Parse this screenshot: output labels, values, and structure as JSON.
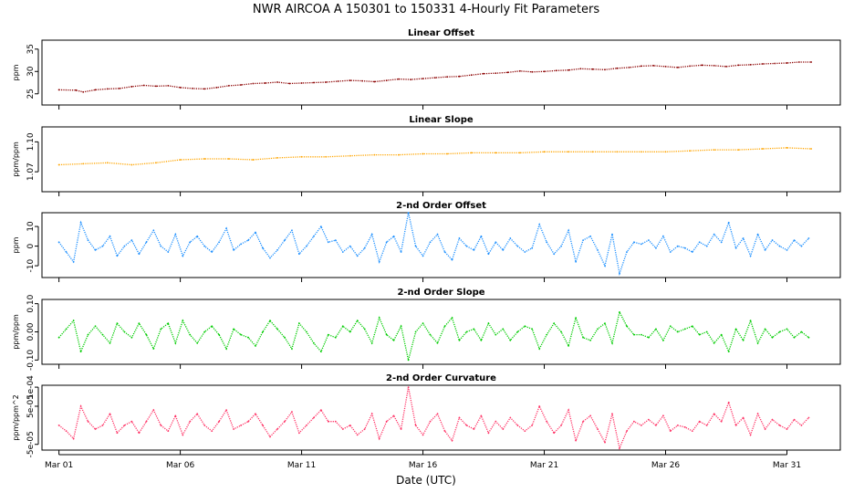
{
  "title": "NWR   AIRCOA A   150301 to 150331   4-Hourly Fit Parameters",
  "xlabel": "Date (UTC)",
  "x_ticks": [
    {
      "day": 1,
      "label": "Mar 01"
    },
    {
      "day": 6,
      "label": "Mar 06"
    },
    {
      "day": 11,
      "label": "Mar 11"
    },
    {
      "day": 16,
      "label": "Mar 16"
    },
    {
      "day": 21,
      "label": "Mar 21"
    },
    {
      "day": 26,
      "label": "Mar 26"
    },
    {
      "day": 31,
      "label": "Mar 31"
    }
  ],
  "chart_data": [
    {
      "type": "line",
      "title": "Linear Offset",
      "ylabel": "ppm",
      "color": "#8b0000",
      "xlim": [
        0.3,
        33.2
      ],
      "ylim": [
        22.5,
        37
      ],
      "yticks": [
        {
          "v": 25,
          "label": "25"
        },
        {
          "v": 30,
          "label": "30"
        },
        {
          "v": 35,
          "label": "35"
        }
      ],
      "x": [
        1.0,
        1.7,
        2.0,
        2.5,
        3.0,
        3.5,
        4.0,
        4.5,
        5.0,
        5.5,
        6.0,
        6.5,
        7.0,
        7.5,
        8.0,
        8.5,
        9.0,
        9.5,
        10.0,
        10.5,
        11.0,
        11.5,
        12.0,
        12.5,
        13.0,
        13.5,
        14.0,
        14.5,
        15.0,
        15.5,
        16.0,
        16.5,
        17.0,
        17.5,
        18.0,
        18.5,
        19.0,
        19.5,
        20.0,
        20.5,
        21.0,
        21.5,
        22.0,
        22.5,
        23.0,
        23.5,
        24.0,
        24.5,
        25.0,
        25.5,
        26.0,
        26.5,
        27.0,
        27.5,
        28.0,
        28.5,
        29.0,
        29.5,
        30.0,
        30.5,
        31.0,
        31.5,
        32.0
      ],
      "values": [
        25.9,
        25.8,
        25.4,
        25.9,
        26.1,
        26.2,
        26.6,
        26.9,
        26.7,
        26.8,
        26.4,
        26.2,
        26.1,
        26.4,
        26.8,
        27.0,
        27.3,
        27.4,
        27.6,
        27.3,
        27.4,
        27.5,
        27.6,
        27.8,
        28.0,
        27.9,
        27.7,
        28.0,
        28.3,
        28.2,
        28.4,
        28.6,
        28.8,
        28.9,
        29.2,
        29.5,
        29.6,
        29.8,
        30.1,
        29.9,
        30.0,
        30.2,
        30.3,
        30.6,
        30.5,
        30.4,
        30.7,
        30.9,
        31.2,
        31.3,
        31.1,
        30.9,
        31.2,
        31.4,
        31.3,
        31.1,
        31.4,
        31.5,
        31.7,
        31.8,
        31.9,
        32.1,
        32.1
      ]
    },
    {
      "type": "line",
      "title": "Linear Slope",
      "ylabel": "ppm/ppm",
      "color": "#ffa500",
      "xlim": [
        0.3,
        33.2
      ],
      "ylim": [
        1.05,
        1.115
      ],
      "yticks": [
        {
          "v": 1.07,
          "label": "1.07"
        },
        {
          "v": 1.1,
          "label": "1.10"
        }
      ],
      "x": [
        1.0,
        2.0,
        3.0,
        4.0,
        5.0,
        6.0,
        7.0,
        8.0,
        9.0,
        10.0,
        11.0,
        12.0,
        13.0,
        14.0,
        15.0,
        16.0,
        17.0,
        18.0,
        19.0,
        20.0,
        21.0,
        22.0,
        23.0,
        24.0,
        25.0,
        26.0,
        27.0,
        28.0,
        29.0,
        30.0,
        31.0,
        32.0
      ],
      "values": [
        1.077,
        1.078,
        1.079,
        1.077,
        1.079,
        1.082,
        1.083,
        1.083,
        1.082,
        1.084,
        1.085,
        1.085,
        1.086,
        1.087,
        1.087,
        1.088,
        1.088,
        1.089,
        1.089,
        1.089,
        1.09,
        1.09,
        1.09,
        1.09,
        1.09,
        1.09,
        1.091,
        1.092,
        1.092,
        1.093,
        1.094,
        1.093
      ]
    },
    {
      "type": "line",
      "title": "2-nd Order Offset",
      "ylabel": "ppm",
      "color": "#1e90ff",
      "xlim": [
        0.3,
        33.2
      ],
      "ylim": [
        -16,
        17
      ],
      "yticks": [
        {
          "v": -10,
          "label": "-10"
        },
        {
          "v": 0,
          "label": "0"
        },
        {
          "v": 10,
          "label": "10"
        }
      ],
      "x": [
        1.0,
        1.3,
        1.6,
        1.9,
        2.2,
        2.5,
        2.8,
        3.1,
        3.4,
        3.7,
        4.0,
        4.3,
        4.6,
        4.9,
        5.2,
        5.5,
        5.8,
        6.1,
        6.4,
        6.7,
        7.0,
        7.3,
        7.6,
        7.9,
        8.2,
        8.5,
        8.8,
        9.1,
        9.4,
        9.7,
        10.0,
        10.3,
        10.6,
        10.9,
        11.2,
        11.5,
        11.8,
        12.1,
        12.4,
        12.7,
        13.0,
        13.3,
        13.6,
        13.9,
        14.2,
        14.5,
        14.8,
        15.1,
        15.4,
        15.7,
        16.0,
        16.3,
        16.6,
        16.9,
        17.2,
        17.5,
        17.8,
        18.1,
        18.4,
        18.7,
        19.0,
        19.3,
        19.6,
        19.9,
        20.2,
        20.5,
        20.8,
        21.1,
        21.4,
        21.7,
        22.0,
        22.3,
        22.6,
        22.9,
        23.2,
        23.5,
        23.8,
        24.1,
        24.4,
        24.7,
        25.0,
        25.3,
        25.6,
        25.9,
        26.2,
        26.5,
        26.8,
        27.1,
        27.4,
        27.7,
        28.0,
        28.3,
        28.6,
        28.9,
        29.2,
        29.5,
        29.8,
        30.1,
        30.4,
        30.7,
        31.0,
        31.3,
        31.6,
        31.9
      ],
      "values": [
        2,
        -3,
        -8,
        12,
        3,
        -2,
        0,
        5,
        -5,
        0,
        3,
        -4,
        2,
        8,
        0,
        -3,
        6,
        -5,
        2,
        5,
        0,
        -3,
        2,
        9,
        -2,
        1,
        3,
        7,
        -1,
        -6,
        -2,
        3,
        8,
        -4,
        0,
        5,
        10,
        2,
        3,
        -3,
        0,
        -5,
        -1,
        6,
        -8,
        2,
        5,
        -3,
        17,
        0,
        -5,
        2,
        6,
        -3,
        -7,
        4,
        0,
        -2,
        5,
        -4,
        2,
        -2,
        4,
        0,
        -3,
        -1,
        11,
        2,
        -4,
        0,
        8,
        -8,
        3,
        5,
        -2,
        -10,
        6,
        -14,
        -3,
        2,
        1,
        3,
        -1,
        5,
        -3,
        0,
        -1,
        -3,
        2,
        0,
        6,
        2,
        12,
        -1,
        4,
        -5,
        6,
        -2,
        3,
        0,
        -2,
        3,
        0,
        4
      ]
    },
    {
      "type": "line",
      "title": "2-nd Order Slope",
      "ylabel": "ppm/ppm",
      "color": "#00cc00",
      "xlim": [
        0.3,
        33.2
      ],
      "ylim": [
        -0.115,
        0.115
      ],
      "yticks": [
        {
          "v": -0.1,
          "label": "-0.10"
        },
        {
          "v": 0,
          "label": "0.00"
        },
        {
          "v": 0.1,
          "label": "0.10"
        }
      ],
      "x": [
        1.0,
        1.3,
        1.6,
        1.9,
        2.2,
        2.5,
        2.8,
        3.1,
        3.4,
        3.7,
        4.0,
        4.3,
        4.6,
        4.9,
        5.2,
        5.5,
        5.8,
        6.1,
        6.4,
        6.7,
        7.0,
        7.3,
        7.6,
        7.9,
        8.2,
        8.5,
        8.8,
        9.1,
        9.4,
        9.7,
        10.0,
        10.3,
        10.6,
        10.9,
        11.2,
        11.5,
        11.8,
        12.1,
        12.4,
        12.7,
        13.0,
        13.3,
        13.6,
        13.9,
        14.2,
        14.5,
        14.8,
        15.1,
        15.4,
        15.7,
        16.0,
        16.3,
        16.6,
        16.9,
        17.2,
        17.5,
        17.8,
        18.1,
        18.4,
        18.7,
        19.0,
        19.3,
        19.6,
        19.9,
        20.2,
        20.5,
        20.8,
        21.1,
        21.4,
        21.7,
        22.0,
        22.3,
        22.6,
        22.9,
        23.2,
        23.5,
        23.8,
        24.1,
        24.4,
        24.7,
        25.0,
        25.3,
        25.6,
        25.9,
        26.2,
        26.5,
        26.8,
        27.1,
        27.4,
        27.7,
        28.0,
        28.3,
        28.6,
        28.9,
        29.2,
        29.5,
        29.8,
        30.1,
        30.4,
        30.7,
        31.0,
        31.3,
        31.6,
        31.9
      ],
      "values": [
        -0.02,
        0.01,
        0.04,
        -0.07,
        -0.01,
        0.02,
        -0.01,
        -0.04,
        0.03,
        0.0,
        -0.02,
        0.03,
        -0.01,
        -0.06,
        0.01,
        0.03,
        -0.04,
        0.04,
        -0.01,
        -0.04,
        0.0,
        0.02,
        -0.01,
        -0.06,
        0.01,
        -0.01,
        -0.02,
        -0.05,
        0.0,
        0.04,
        0.01,
        -0.02,
        -0.06,
        0.03,
        0.0,
        -0.04,
        -0.07,
        -0.01,
        -0.02,
        0.02,
        0.0,
        0.04,
        0.01,
        -0.04,
        0.05,
        -0.01,
        -0.03,
        0.02,
        -0.1,
        0.0,
        0.03,
        -0.01,
        -0.04,
        0.02,
        0.05,
        -0.03,
        0.0,
        0.01,
        -0.03,
        0.03,
        -0.01,
        0.01,
        -0.03,
        0.0,
        0.02,
        0.01,
        -0.06,
        -0.01,
        0.03,
        0.0,
        -0.05,
        0.05,
        -0.02,
        -0.03,
        0.01,
        0.03,
        -0.04,
        0.07,
        0.02,
        -0.01,
        -0.01,
        -0.02,
        0.01,
        -0.03,
        0.02,
        0.0,
        0.01,
        0.02,
        -0.01,
        0.0,
        -0.04,
        -0.01,
        -0.07,
        0.01,
        -0.03,
        0.04,
        -0.04,
        0.01,
        -0.02,
        0.0,
        0.01,
        -0.02,
        0.0,
        -0.02
      ]
    },
    {
      "type": "line",
      "title": "2-nd Order Curvature",
      "ylabel": "ppm/ppm^2",
      "color": "#ff3366",
      "xlim": [
        0.3,
        33.2
      ],
      "ylim": [
        -6.5e-05,
        0.000105
      ],
      "yticks": [
        {
          "v": -5e-05,
          "label": "-5e-05"
        },
        {
          "v": 5e-05,
          "label": "5e-05"
        },
        {
          "v": 0.0001,
          "label": "1e-04"
        }
      ],
      "x": [
        1.0,
        1.3,
        1.6,
        1.9,
        2.2,
        2.5,
        2.8,
        3.1,
        3.4,
        3.7,
        4.0,
        4.3,
        4.6,
        4.9,
        5.2,
        5.5,
        5.8,
        6.1,
        6.4,
        6.7,
        7.0,
        7.3,
        7.6,
        7.9,
        8.2,
        8.5,
        8.8,
        9.1,
        9.4,
        9.7,
        10.0,
        10.3,
        10.6,
        10.9,
        11.2,
        11.5,
        11.8,
        12.1,
        12.4,
        12.7,
        13.0,
        13.3,
        13.6,
        13.9,
        14.2,
        14.5,
        14.8,
        15.1,
        15.4,
        15.7,
        16.0,
        16.3,
        16.6,
        16.9,
        17.2,
        17.5,
        17.8,
        18.1,
        18.4,
        18.7,
        19.0,
        19.3,
        19.6,
        19.9,
        20.2,
        20.5,
        20.8,
        21.1,
        21.4,
        21.7,
        22.0,
        22.3,
        22.6,
        22.9,
        23.2,
        23.5,
        23.8,
        24.1,
        24.4,
        24.7,
        25.0,
        25.3,
        25.6,
        25.9,
        26.2,
        26.5,
        26.8,
        27.1,
        27.4,
        27.7,
        28.0,
        28.3,
        28.6,
        28.9,
        29.2,
        29.5,
        29.8,
        30.1,
        30.4,
        30.7,
        31.0,
        31.3,
        31.6,
        31.9
      ],
      "values": [
        0.0,
        -1.5e-05,
        -3.5e-05,
        5e-05,
        1e-05,
        -1e-05,
        0.0,
        3e-05,
        -2e-05,
        0.0,
        1e-05,
        -2e-05,
        1e-05,
        4e-05,
        0.0,
        -1.5e-05,
        2.5e-05,
        -2.5e-05,
        1e-05,
        3e-05,
        0.0,
        -1.5e-05,
        1e-05,
        4e-05,
        -1e-05,
        0.0,
        1e-05,
        3e-05,
        0.0,
        -3e-05,
        -1e-05,
        1e-05,
        3.5e-05,
        -2e-05,
        0.0,
        2e-05,
        4e-05,
        1e-05,
        1e-05,
        -1e-05,
        0.0,
        -2.5e-05,
        -1e-05,
        3e-05,
        -3.5e-05,
        1e-05,
        2.5e-05,
        -1e-05,
        0.0001,
        0.0,
        -2.5e-05,
        1e-05,
        3e-05,
        -1.5e-05,
        -4e-05,
        2e-05,
        0.0,
        -1e-05,
        2.5e-05,
        -2e-05,
        1e-05,
        -1e-05,
        2e-05,
        0.0,
        -1.5e-05,
        0.0,
        5e-05,
        1e-05,
        -2e-05,
        0.0,
        4e-05,
        -4e-05,
        1e-05,
        2.5e-05,
        -1e-05,
        -4.5e-05,
        3e-05,
        -6e-05,
        -1.5e-05,
        1e-05,
        0.0,
        1.5e-05,
        0.0,
        2.5e-05,
        -1.5e-05,
        0.0,
        -5e-06,
        -1.5e-05,
        1e-05,
        0.0,
        3e-05,
        1e-05,
        6e-05,
        0.0,
        2e-05,
        -2.5e-05,
        3e-05,
        -1e-05,
        1.5e-05,
        0.0,
        -1e-05,
        1.5e-05,
        0.0,
        2e-05
      ]
    }
  ]
}
